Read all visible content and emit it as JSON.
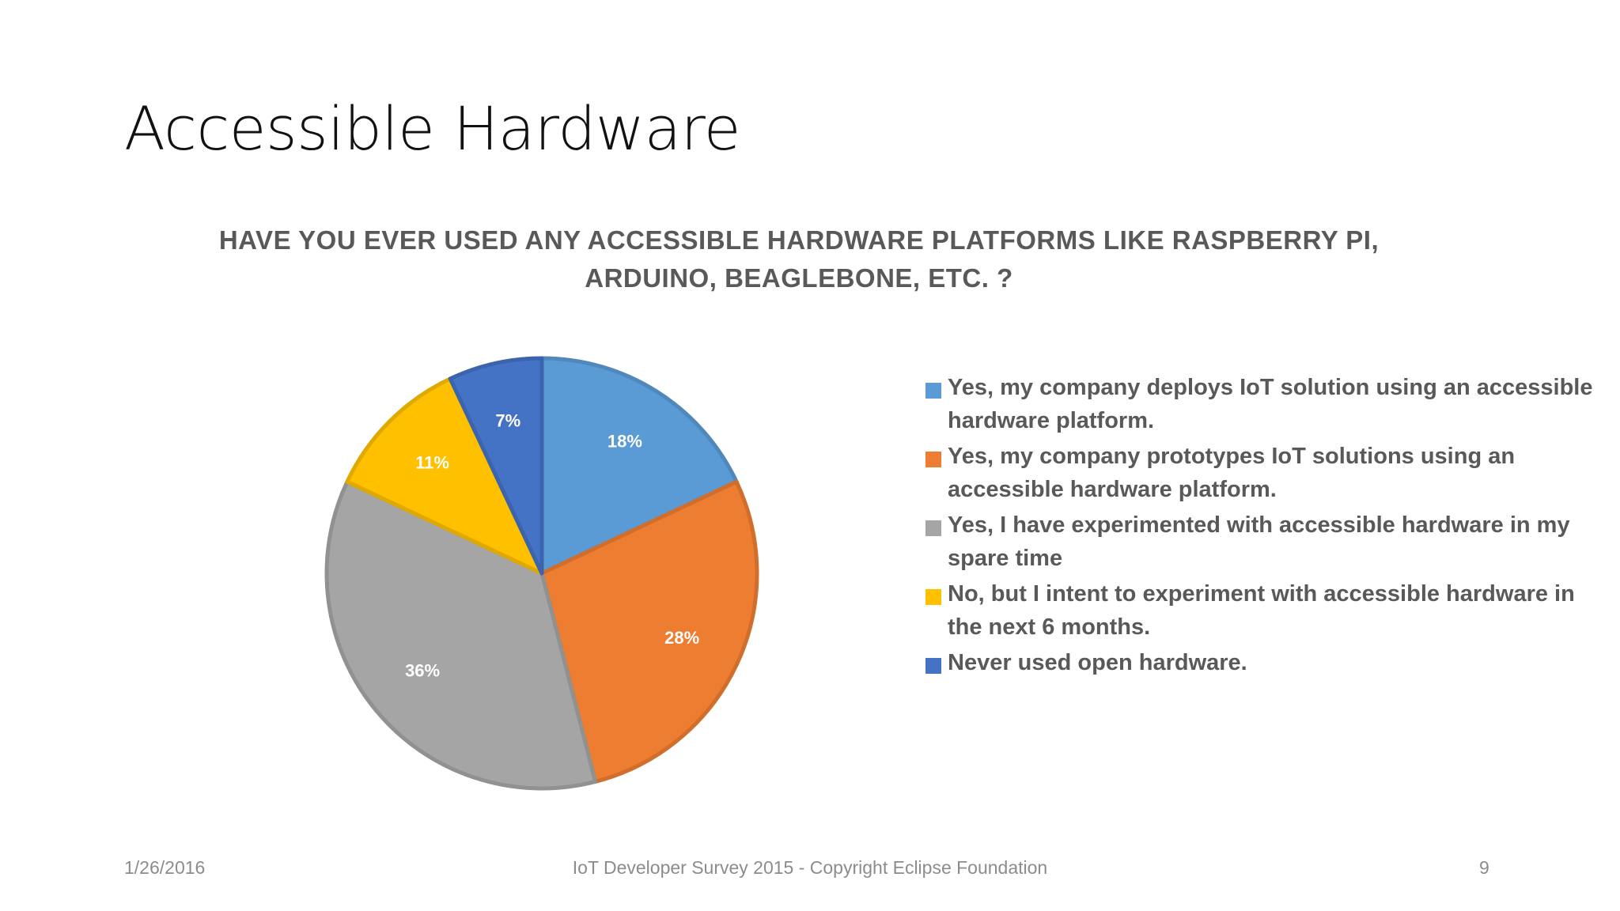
{
  "slide": {
    "title": "Accessible Hardware"
  },
  "footer": {
    "date": "1/26/2016",
    "center": "IoT Developer Survey 2015 - Copyright Eclipse Foundation",
    "page": "9"
  },
  "chart_data": {
    "type": "pie",
    "title_lines": [
      "HAVE YOU EVER USED ANY ACCESSIBLE HARDWARE PLATFORMS LIKE RASPBERRY PI,",
      "ARDUINO, BEAGLEBONE, ETC. ?"
    ],
    "legend_position": "right",
    "slices": [
      {
        "label": "Yes, my company deploys IoT solution using an accessible hardware platform.",
        "value": 18,
        "display": "18%",
        "color": "#5B9BD5"
      },
      {
        "label": "Yes, my company prototypes IoT solutions using an accessible hardware platform.",
        "value": 28,
        "display": "28%",
        "color": "#ED7D31"
      },
      {
        "label": "Yes, I have experimented with accessible hardware in my spare time",
        "value": 36,
        "display": "36%",
        "color": "#A5A5A5"
      },
      {
        "label": "No, but I intent to experiment with accessible hardware in the next 6 months.",
        "value": 11,
        "display": "11%",
        "color": "#FFC000"
      },
      {
        "label": "Never used open hardware.",
        "value": 7,
        "display": "7%",
        "color": "#4472C4"
      }
    ]
  }
}
